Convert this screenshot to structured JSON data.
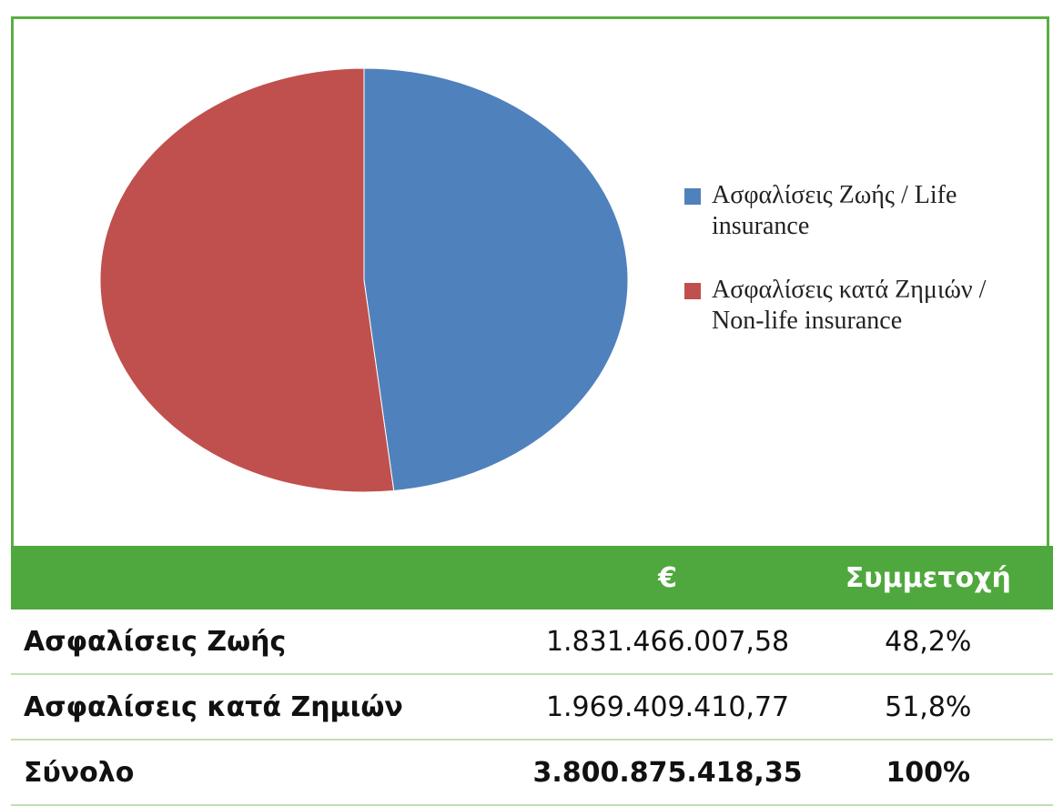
{
  "chart_data": {
    "type": "pie",
    "categories": [
      "Ασφαλίσεις Ζωής / Life insurance",
      "Ασφαλίσεις κατά Ζημιών / Non-life insurance"
    ],
    "values": [
      48.2,
      51.8
    ],
    "colors": [
      "#4f81bd",
      "#c0504d"
    ],
    "legend": "right"
  },
  "table": {
    "header": [
      "€",
      "Συμμετοχή"
    ],
    "rows": [
      [
        "Ασφαλίσεις Ζωής",
        "1.831.466.007,58",
        "48,2%"
      ],
      [
        "Ασφαλίσεις κατά Ζημιών",
        "1.969.409.410,77",
        "51,8%"
      ],
      [
        "Σύνολο",
        "3.800.875.418,35",
        "100%"
      ]
    ]
  }
}
